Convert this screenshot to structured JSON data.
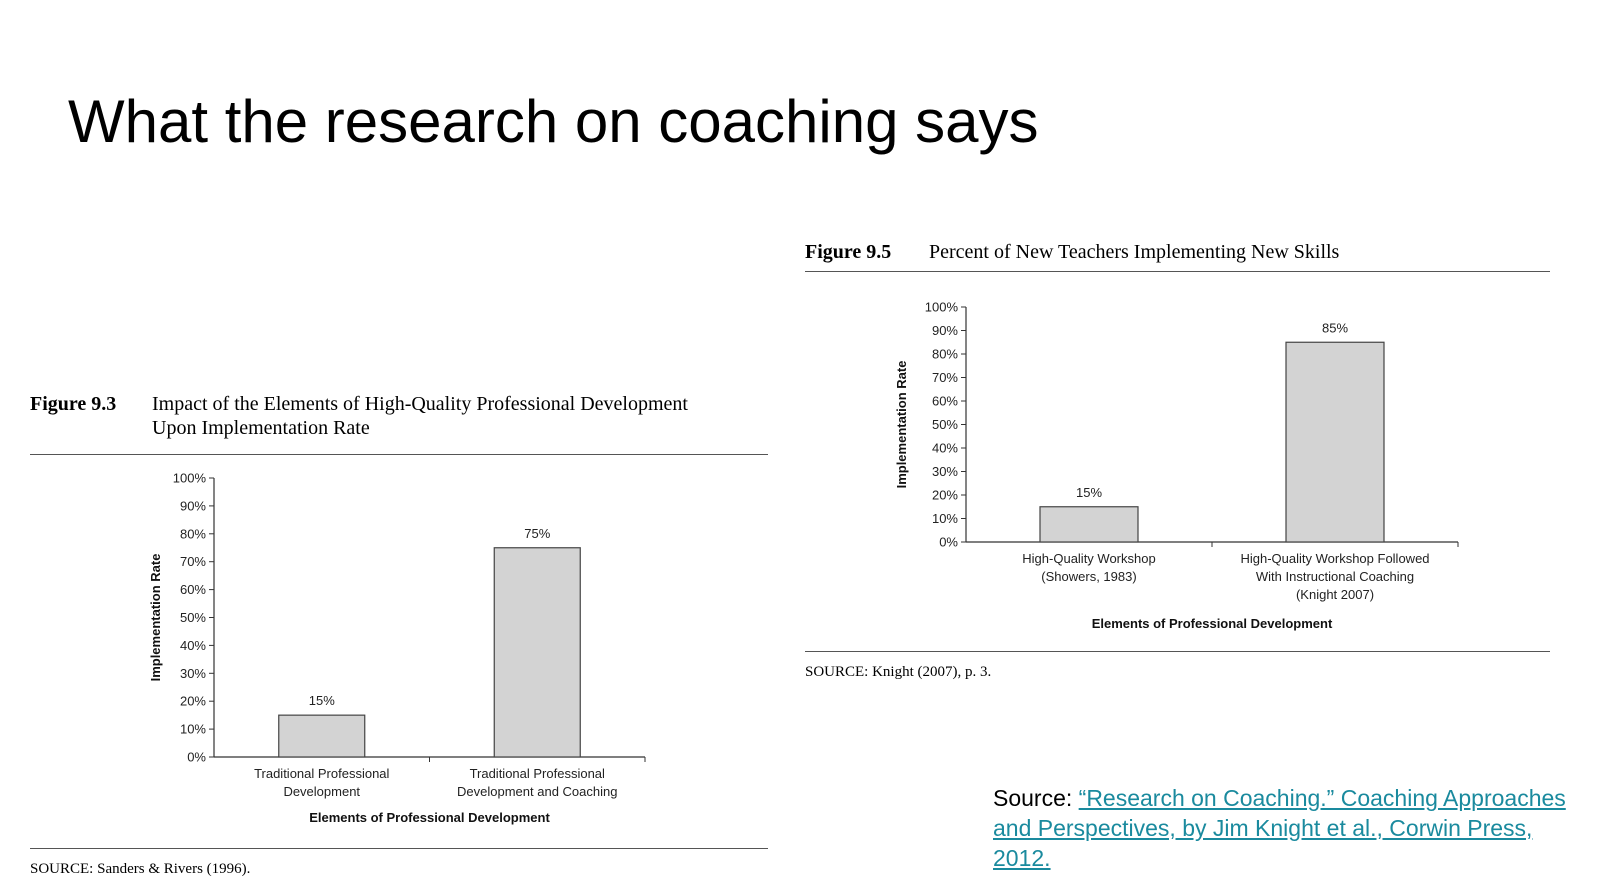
{
  "slide": {
    "title": "What the research on coaching says"
  },
  "figures": [
    {
      "number": "Figure 9.3",
      "title_lines": [
        "Impact of the Elements of High-Quality Professional Development",
        "Upon Implementation Rate"
      ],
      "source": "SOURCE: Sanders & Rivers (1996)."
    },
    {
      "number": "Figure 9.5",
      "title_lines": [
        "Percent of New Teachers Implementing New Skills"
      ],
      "source": "SOURCE: Knight (2007), p. 3."
    }
  ],
  "chart_data": [
    {
      "type": "bar",
      "title": "Impact of the Elements of High-Quality Professional Development Upon Implementation Rate",
      "categories": [
        [
          "Traditional Professional",
          "Development"
        ],
        [
          "Traditional Professional",
          "Development and Coaching"
        ]
      ],
      "values": [
        15,
        75
      ],
      "data_labels": [
        "15%",
        "75%"
      ],
      "xlabel": "Elements of Professional Development",
      "ylabel": "Implementation Rate",
      "ylim": [
        0,
        100
      ],
      "yticks": [
        0,
        10,
        20,
        30,
        40,
        50,
        60,
        70,
        80,
        90,
        100
      ],
      "ytick_labels": [
        "0%",
        "10%",
        "20%",
        "30%",
        "40%",
        "50%",
        "60%",
        "70%",
        "80%",
        "90%",
        "100%"
      ],
      "grid": false,
      "bar_color": "#d3d3d3"
    },
    {
      "type": "bar",
      "title": "Percent of New Teachers Implementing New Skills",
      "categories": [
        [
          "High-Quality Workshop",
          "(Showers, 1983)"
        ],
        [
          "High-Quality Workshop Followed",
          "With Instructional Coaching",
          "(Knight 2007)"
        ]
      ],
      "values": [
        15,
        85
      ],
      "data_labels": [
        "15%",
        "85%"
      ],
      "xlabel": "Elements of Professional Development",
      "ylabel": "Implementation Rate",
      "ylim": [
        0,
        100
      ],
      "yticks": [
        0,
        10,
        20,
        30,
        40,
        50,
        60,
        70,
        80,
        90,
        100
      ],
      "ytick_labels": [
        "0%",
        "10%",
        "20%",
        "30%",
        "40%",
        "50%",
        "60%",
        "70%",
        "80%",
        "90%",
        "100%"
      ],
      "grid": false,
      "bar_color": "#d3d3d3"
    }
  ],
  "citation": {
    "prefix": "Source: ",
    "link_text": "“Research on Coaching.” Coaching Approaches and Perspectives, by Jim Knight et al., Corwin Press, 2012.",
    "link_color": "#1a8a9e"
  }
}
